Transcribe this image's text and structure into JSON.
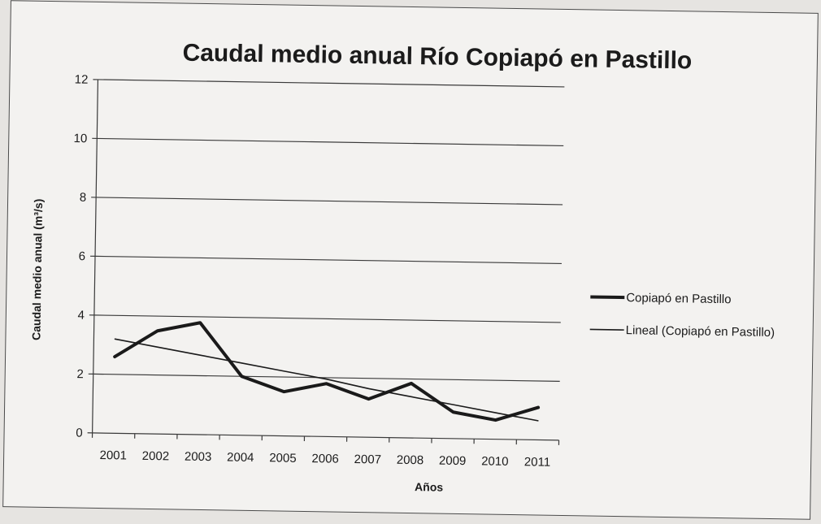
{
  "chart_data": {
    "type": "line",
    "title": "Caudal medio anual Río Copiapó en Pastillo",
    "xlabel": "Años",
    "ylabel": "Caudal medio anual (m³/s)",
    "x": [
      "2001",
      "2002",
      "2003",
      "2004",
      "2005",
      "2006",
      "2007",
      "2008",
      "2009",
      "2010",
      "2011"
    ],
    "ylim": [
      0,
      12
    ],
    "yticks": [
      0,
      2,
      4,
      6,
      8,
      10,
      12
    ],
    "grid": true,
    "legend_position": "right",
    "series": [
      {
        "name": "Copiapó en Pastillo",
        "values": [
          2.6,
          3.5,
          3.8,
          2.0,
          1.5,
          1.8,
          1.3,
          1.85,
          0.9,
          0.65,
          1.1
        ],
        "color": "#1a1a1a",
        "style": "thick"
      },
      {
        "name": "Lineal (Copiapó en Pastillo)",
        "values": [
          3.2,
          2.95,
          2.7,
          2.45,
          2.2,
          1.95,
          1.65,
          1.4,
          1.15,
          0.9,
          0.65
        ],
        "color": "#1a1a1a",
        "style": "thin"
      }
    ]
  }
}
